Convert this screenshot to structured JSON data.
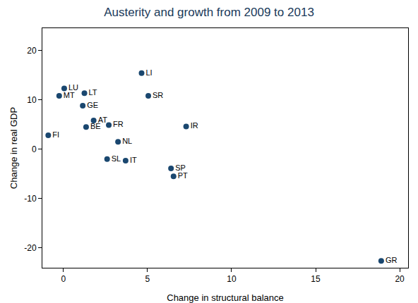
{
  "chart_data": {
    "type": "scatter",
    "title": "Austerity and growth from 2009 to 2013",
    "x_label": "Change in structural balance",
    "y_label": "Change in real GDP",
    "labels": [
      "LU",
      "MT",
      "LT",
      "GE",
      "LI",
      "SR",
      "AT",
      "BE",
      "FR",
      "FI",
      "NL",
      "IR",
      "SL",
      "IT",
      "SP",
      "PT",
      "GR"
    ],
    "x": [
      0.05,
      -0.25,
      1.25,
      1.15,
      4.65,
      5.05,
      1.8,
      1.35,
      2.7,
      -0.9,
      3.25,
      7.3,
      2.6,
      3.7,
      6.4,
      6.55,
      18.9
    ],
    "values": [
      12.3,
      10.8,
      11.35,
      8.8,
      15.4,
      10.8,
      5.8,
      4.5,
      4.9,
      2.8,
      1.5,
      4.6,
      -2.0,
      -2.3,
      -3.9,
      -5.5,
      -22.6
    ],
    "color": "#1a476f",
    "marker": "circle",
    "xlim": [
      -1.25,
      20.5
    ],
    "ylim": [
      -24,
      24.5
    ],
    "xticks": [
      0,
      5,
      10,
      15,
      20
    ],
    "yticks": [
      -20,
      -10,
      0,
      10,
      20
    ],
    "grid": false
  }
}
